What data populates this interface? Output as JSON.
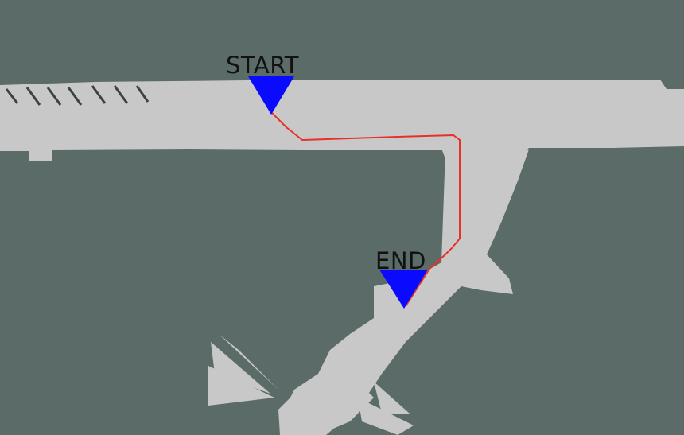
{
  "map": {
    "background_color": "#5b6b68",
    "free_space_color": "#c8c8c8",
    "path_color": "#e8302a",
    "marker_color": "#0a0aff"
  },
  "markers": {
    "start": {
      "label": "START",
      "icon": "triangle-down-icon"
    },
    "end": {
      "label": "END",
      "icon": "triangle-down-icon"
    }
  }
}
